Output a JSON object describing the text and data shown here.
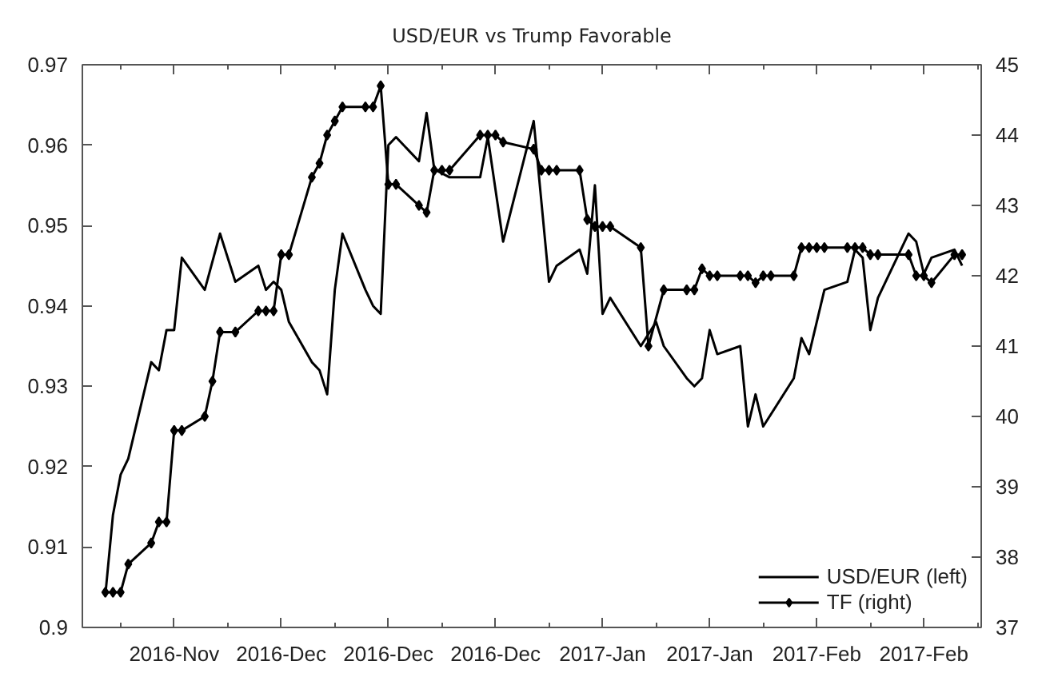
{
  "chart_data": {
    "type": "line",
    "title": "USD/EUR vs Trump Favorable",
    "xlim": [
      "2016-11-05",
      "2017-03-02T12:00"
    ],
    "xticks": [
      {
        "value": "2016-11-10",
        "label": null
      },
      {
        "value": "2016-11-17",
        "label": "2016-Nov"
      },
      {
        "value": "2016-11-24",
        "label": null
      },
      {
        "value": "2016-12-01",
        "label": "2016-Dec"
      },
      {
        "value": "2016-12-08",
        "label": null
      },
      {
        "value": "2016-12-15",
        "label": "2016-Dec"
      },
      {
        "value": "2016-12-22",
        "label": null
      },
      {
        "value": "2016-12-29",
        "label": "2016-Dec"
      },
      {
        "value": "2017-01-05",
        "label": null
      },
      {
        "value": "2017-01-12",
        "label": "2017-Jan"
      },
      {
        "value": "2017-01-19",
        "label": null
      },
      {
        "value": "2017-01-26",
        "label": "2017-Jan"
      },
      {
        "value": "2017-02-02",
        "label": null
      },
      {
        "value": "2017-02-09",
        "label": "2017-Feb"
      },
      {
        "value": "2017-02-16",
        "label": null
      },
      {
        "value": "2017-02-23",
        "label": "2017-Feb"
      },
      {
        "value": "2017-03-02",
        "label": null
      }
    ],
    "ylim": [
      0.9,
      0.97
    ],
    "yticks": [
      0.9,
      0.91,
      0.92,
      0.93,
      0.94,
      0.95,
      0.96,
      0.97
    ],
    "y2lim": [
      37,
      45
    ],
    "y2ticks": [
      37,
      38,
      39,
      40,
      41,
      42,
      43,
      44,
      45
    ],
    "legend": "bottom right",
    "line_style": "solid",
    "series": [
      {
        "name": "USD/EUR (left)",
        "color": "#000000",
        "marker": "none",
        "x": [
          "2016-11-08",
          "2016-11-09",
          "2016-11-10",
          "2016-11-11",
          "2016-11-14",
          "2016-11-15",
          "2016-11-16",
          "2016-11-17",
          "2016-11-18",
          "2016-11-21",
          "2016-11-23",
          "2016-11-25",
          "2016-11-28",
          "2016-11-29",
          "2016-11-30",
          "2016-12-01",
          "2016-12-02",
          "2016-12-05",
          "2016-12-06",
          "2016-12-07",
          "2016-12-08",
          "2016-12-09",
          "2016-12-12",
          "2016-12-13",
          "2016-12-14",
          "2016-12-15",
          "2016-12-16",
          "2016-12-19",
          "2016-12-20",
          "2016-12-21",
          "2016-12-23",
          "2016-12-27",
          "2016-12-28",
          "2016-12-30",
          "2017-01-03",
          "2017-01-05",
          "2017-01-06",
          "2017-01-09",
          "2017-01-10",
          "2017-01-11",
          "2017-01-12",
          "2017-01-13",
          "2017-01-17",
          "2017-01-19",
          "2017-01-20",
          "2017-01-23",
          "2017-01-24",
          "2017-01-25",
          "2017-01-26",
          "2017-01-27",
          "2017-01-30",
          "2017-01-31",
          "2017-02-01",
          "2017-02-02",
          "2017-02-06",
          "2017-02-07",
          "2017-02-08",
          "2017-02-10",
          "2017-02-13",
          "2017-02-14",
          "2017-02-15",
          "2017-02-16",
          "2017-02-17",
          "2017-02-21",
          "2017-02-22",
          "2017-02-23",
          "2017-02-24",
          "2017-02-27",
          "2017-02-28"
        ],
        "values": [
          0.904,
          0.914,
          0.919,
          0.921,
          0.933,
          0.932,
          0.937,
          0.937,
          0.946,
          0.942,
          0.949,
          0.943,
          0.945,
          0.942,
          0.943,
          0.942,
          0.938,
          0.933,
          0.932,
          0.929,
          0.942,
          0.949,
          0.942,
          0.94,
          0.939,
          0.96,
          0.961,
          0.958,
          0.964,
          0.957,
          0.956,
          0.956,
          0.961,
          0.948,
          0.963,
          0.943,
          0.945,
          0.947,
          0.944,
          0.955,
          0.939,
          0.941,
          0.935,
          0.938,
          0.935,
          0.931,
          0.93,
          0.931,
          0.937,
          0.934,
          0.935,
          0.925,
          0.929,
          0.925,
          0.931,
          0.936,
          0.934,
          0.942,
          0.943,
          0.947,
          0.946,
          0.937,
          0.941,
          0.949,
          0.948,
          0.944,
          0.946,
          0.947,
          0.945
        ]
      },
      {
        "name": "TF (right)",
        "color": "#000000",
        "marker": "diamond",
        "axis": "y2",
        "x": [
          "2016-11-08",
          "2016-11-09",
          "2016-11-10",
          "2016-11-11",
          "2016-11-14",
          "2016-11-15",
          "2016-11-16",
          "2016-11-17",
          "2016-11-18",
          "2016-11-21",
          "2016-11-22",
          "2016-11-23",
          "2016-11-25",
          "2016-11-28",
          "2016-11-29",
          "2016-11-30",
          "2016-12-01",
          "2016-12-02",
          "2016-12-05",
          "2016-12-06",
          "2016-12-07",
          "2016-12-08",
          "2016-12-09",
          "2016-12-12",
          "2016-12-13",
          "2016-12-14",
          "2016-12-15",
          "2016-12-16",
          "2016-12-19",
          "2016-12-20",
          "2016-12-21",
          "2016-12-22",
          "2016-12-23",
          "2016-12-27",
          "2016-12-28",
          "2016-12-29",
          "2016-12-30",
          "2017-01-03",
          "2017-01-04",
          "2017-01-05",
          "2017-01-06",
          "2017-01-09",
          "2017-01-10",
          "2017-01-11",
          "2017-01-12",
          "2017-01-13",
          "2017-01-17",
          "2017-01-18",
          "2017-01-20",
          "2017-01-23",
          "2017-01-24",
          "2017-01-25",
          "2017-01-26",
          "2017-01-27",
          "2017-01-30",
          "2017-01-31",
          "2017-02-01",
          "2017-02-02",
          "2017-02-03",
          "2017-02-06",
          "2017-02-07",
          "2017-02-08",
          "2017-02-09",
          "2017-02-10",
          "2017-02-13",
          "2017-02-14",
          "2017-02-15",
          "2017-02-16",
          "2017-02-17",
          "2017-02-21",
          "2017-02-22",
          "2017-02-23",
          "2017-02-24",
          "2017-02-27",
          "2017-02-28"
        ],
        "values": [
          37.5,
          37.5,
          37.5,
          37.9,
          38.2,
          38.5,
          38.5,
          39.8,
          39.8,
          40.0,
          40.5,
          41.2,
          41.2,
          41.5,
          41.5,
          41.5,
          42.3,
          42.3,
          43.4,
          43.6,
          44.0,
          44.2,
          44.4,
          44.4,
          44.4,
          44.7,
          43.3,
          43.3,
          43.0,
          42.9,
          43.5,
          43.5,
          43.5,
          44.0,
          44.0,
          44.0,
          43.9,
          43.8,
          43.5,
          43.5,
          43.5,
          43.5,
          42.8,
          42.7,
          42.7,
          42.7,
          42.4,
          41.0,
          41.8,
          41.8,
          41.8,
          42.1,
          42.0,
          42.0,
          42.0,
          42.0,
          41.9,
          42.0,
          42.0,
          42.0,
          42.4,
          42.4,
          42.4,
          42.4,
          42.4,
          42.4,
          42.4,
          42.3,
          42.3,
          42.3,
          42.0,
          42.0,
          41.9,
          42.3,
          42.3
        ]
      }
    ]
  }
}
